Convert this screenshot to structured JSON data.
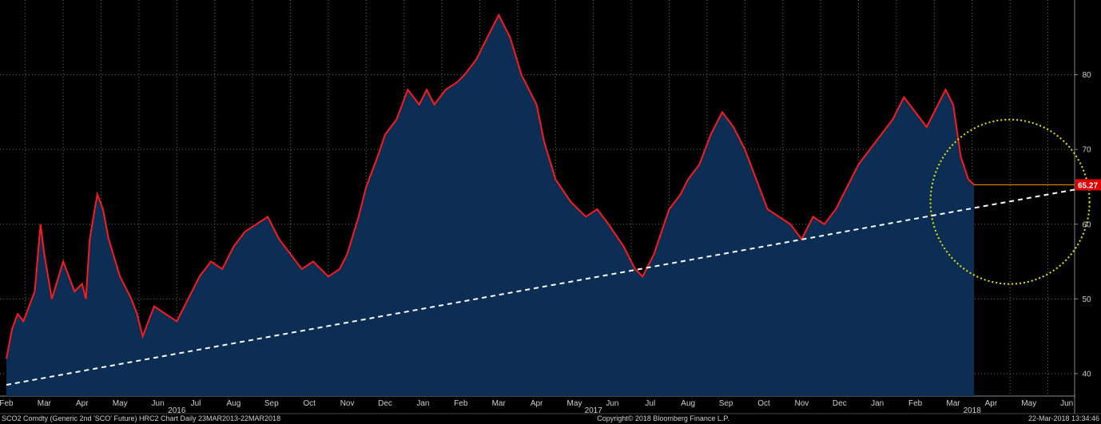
{
  "chart_data": {
    "type": "area",
    "title": "",
    "xlabel": "",
    "ylabel": "",
    "ylim": [
      37,
      90
    ],
    "y_ticks": [
      40,
      50,
      60,
      70,
      80
    ],
    "grid": true,
    "x_tick_labels": [
      "Feb",
      "Mar",
      "Apr",
      "May",
      "Jun",
      "Jul",
      "Aug",
      "Sep",
      "Oct",
      "Nov",
      "Dec",
      "Jan",
      "Feb",
      "Mar",
      "Apr",
      "May",
      "Jun",
      "Jul",
      "Aug",
      "Sep",
      "Oct",
      "Nov",
      "Dec",
      "Jan",
      "Feb",
      "Mar",
      "Apr",
      "May",
      "Jun"
    ],
    "year_labels": [
      {
        "label": "2016",
        "month_index": 5
      },
      {
        "label": "2017",
        "month_index": 16
      },
      {
        "label": "2018",
        "month_index": 26
      }
    ],
    "series": [
      {
        "x_month": [
          0,
          0.15,
          0.3,
          0.45,
          0.6,
          0.75,
          0.9,
          1.0,
          1.2,
          1.5,
          1.8,
          2.0,
          2.1,
          2.2,
          2.3,
          2.4,
          2.55,
          2.7,
          3.0,
          3.3,
          3.45,
          3.6,
          3.9,
          4.2,
          4.5,
          4.8,
          5.1,
          5.4,
          5.7,
          6.0,
          6.3,
          6.6,
          6.9,
          7.2,
          7.5,
          7.8,
          8.1,
          8.5,
          8.8,
          9.0,
          9.3,
          9.5,
          9.8,
          10.0,
          10.3,
          10.6,
          10.9,
          11.1,
          11.3,
          11.6,
          11.9,
          12.1,
          12.4,
          12.7,
          13.0,
          13.3,
          13.6,
          14.0,
          14.2,
          14.5,
          14.9,
          15.3,
          15.6,
          15.9,
          16.3,
          16.6,
          16.8,
          17.1,
          17.5,
          17.8,
          18.0,
          18.3,
          18.6,
          18.9,
          19.2,
          19.5,
          19.8,
          20.1,
          20.4,
          20.7,
          21.0,
          21.3,
          21.6,
          21.9,
          22.2,
          22.5,
          22.8,
          23.1,
          23.4,
          23.7,
          24.0,
          24.3,
          24.6,
          24.8,
          25.0,
          25.2,
          25.4,
          25.55
        ],
        "values": [
          42,
          46,
          48,
          47,
          49,
          51,
          60,
          56,
          50,
          55,
          51,
          52,
          50,
          58,
          61,
          64,
          62,
          58,
          53,
          50,
          48,
          45,
          49,
          48,
          47,
          50,
          53,
          55,
          54,
          57,
          59,
          60,
          61,
          58,
          56,
          54,
          55,
          53,
          54,
          56,
          61,
          65,
          69,
          72,
          74,
          78,
          76,
          78,
          76,
          78,
          79,
          80,
          82,
          85,
          88,
          85,
          80,
          76,
          71,
          66,
          63,
          61,
          62,
          60,
          57,
          54,
          53,
          56,
          62,
          64,
          66,
          68,
          72,
          75,
          73,
          70,
          66,
          62,
          61,
          60,
          58,
          61,
          60,
          62,
          65,
          68,
          70,
          72,
          74,
          77,
          75,
          73,
          76,
          78,
          76,
          69,
          66,
          65.27
        ]
      }
    ],
    "trendline": {
      "x_month": [
        0,
        28.9
      ],
      "values": [
        38.5,
        65.27
      ]
    },
    "last_value": 65.27,
    "last_value_label": "65.27",
    "highlight_ellipse": {
      "center_x_month": 26.5,
      "center_y": 63,
      "radius_x_months": 2.1,
      "radius_y": 11
    }
  },
  "footer": {
    "left": "SCO2 Comdty (Generic 2nd 'SCO' Future) HRC2 Chart  Daily 23MAR2013-22MAR2018",
    "center": "Copyright© 2018 Bloomberg Finance L.P.",
    "right": "22-Mar-2018 13:34:46"
  },
  "colors": {
    "line": "#ff1a1a",
    "fill": "#0d2e54",
    "grid": "#6b6b6b",
    "trendline": "#ffffff",
    "ellipse": "#e6e600",
    "marker": "#ff9900",
    "last_badge": "#e00000"
  }
}
